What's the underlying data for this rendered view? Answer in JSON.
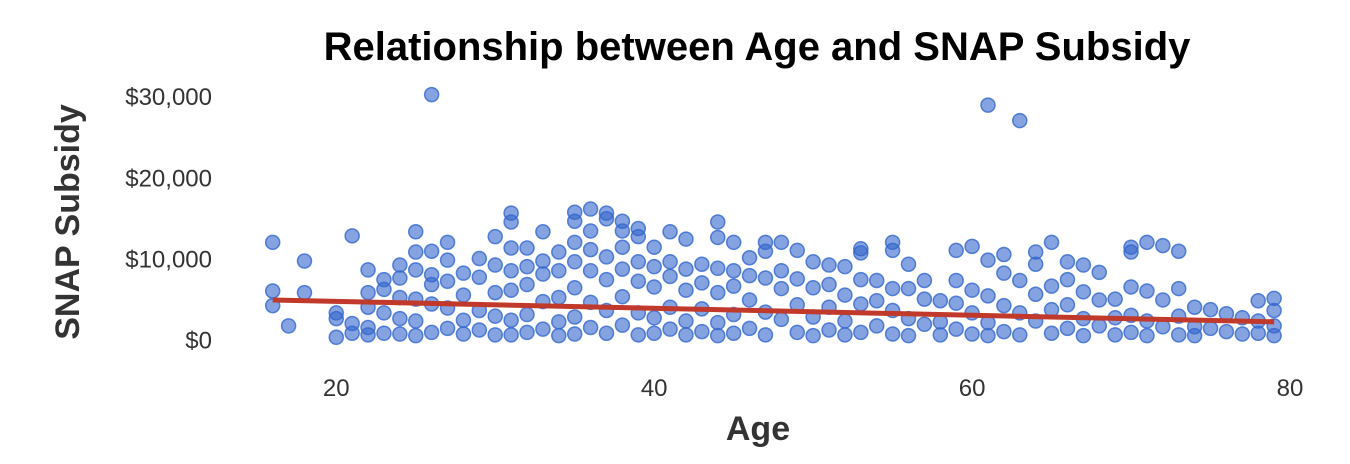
{
  "chart_data": {
    "type": "scatter",
    "title": "Relationship between Age and SNAP Subsidy",
    "xlabel": "Age",
    "ylabel": "SNAP Subsidy",
    "xlim": [
      13,
      80
    ],
    "ylim": [
      -2500,
      32000
    ],
    "x_ticks": [
      {
        "value": 20,
        "label": "20"
      },
      {
        "value": 40,
        "label": "40"
      },
      {
        "value": 60,
        "label": "60"
      },
      {
        "value": 80,
        "label": "80"
      }
    ],
    "y_ticks": [
      {
        "value": 0,
        "label": "$0"
      },
      {
        "value": 10000,
        "label": "$10,000"
      },
      {
        "value": 20000,
        "label": "$20,000"
      },
      {
        "value": 30000,
        "label": "$30,000"
      }
    ],
    "grid": false,
    "point_color": "#3366cc",
    "trend_color": "#c0392b",
    "series": [
      {
        "values": [
          [
            16,
            12000
          ],
          [
            16,
            6000
          ],
          [
            16,
            4200
          ],
          [
            17,
            1700
          ],
          [
            18,
            5800
          ],
          [
            18,
            9700
          ],
          [
            20,
            2600
          ],
          [
            20,
            3300
          ],
          [
            20,
            300
          ],
          [
            21,
            12800
          ],
          [
            21,
            2000
          ],
          [
            21,
            800
          ],
          [
            22,
            8600
          ],
          [
            22,
            5800
          ],
          [
            22,
            4000
          ],
          [
            22,
            1500
          ],
          [
            22,
            600
          ],
          [
            23,
            7400
          ],
          [
            23,
            6200
          ],
          [
            23,
            3300
          ],
          [
            23,
            800
          ],
          [
            24,
            9200
          ],
          [
            24,
            7600
          ],
          [
            24,
            5200
          ],
          [
            24,
            2600
          ],
          [
            24,
            700
          ],
          [
            25,
            13300
          ],
          [
            25,
            10800
          ],
          [
            25,
            8600
          ],
          [
            25,
            5000
          ],
          [
            25,
            2300
          ],
          [
            25,
            500
          ],
          [
            26,
            30200
          ],
          [
            26,
            10900
          ],
          [
            26,
            8000
          ],
          [
            26,
            6800
          ],
          [
            26,
            4400
          ],
          [
            26,
            900
          ],
          [
            27,
            12000
          ],
          [
            27,
            9800
          ],
          [
            27,
            7200
          ],
          [
            27,
            3900
          ],
          [
            27,
            1400
          ],
          [
            28,
            8200
          ],
          [
            28,
            5500
          ],
          [
            28,
            2400
          ],
          [
            28,
            700
          ],
          [
            29,
            10000
          ],
          [
            29,
            7700
          ],
          [
            29,
            3600
          ],
          [
            29,
            1200
          ],
          [
            30,
            12700
          ],
          [
            30,
            9200
          ],
          [
            30,
            5800
          ],
          [
            30,
            2900
          ],
          [
            30,
            600
          ],
          [
            31,
            15600
          ],
          [
            31,
            14500
          ],
          [
            31,
            11300
          ],
          [
            31,
            8500
          ],
          [
            31,
            6100
          ],
          [
            31,
            2400
          ],
          [
            31,
            600
          ],
          [
            32,
            11300
          ],
          [
            32,
            9000
          ],
          [
            32,
            6800
          ],
          [
            32,
            3100
          ],
          [
            32,
            900
          ],
          [
            33,
            13300
          ],
          [
            33,
            9700
          ],
          [
            33,
            8100
          ],
          [
            33,
            4700
          ],
          [
            33,
            1300
          ],
          [
            34,
            10800
          ],
          [
            34,
            8500
          ],
          [
            34,
            5200
          ],
          [
            34,
            2200
          ],
          [
            34,
            500
          ],
          [
            35,
            15700
          ],
          [
            35,
            14600
          ],
          [
            35,
            12000
          ],
          [
            35,
            9600
          ],
          [
            35,
            6400
          ],
          [
            35,
            2800
          ],
          [
            35,
            700
          ],
          [
            36,
            16100
          ],
          [
            36,
            13400
          ],
          [
            36,
            11100
          ],
          [
            36,
            8500
          ],
          [
            36,
            4600
          ],
          [
            36,
            1500
          ],
          [
            37,
            15600
          ],
          [
            37,
            14900
          ],
          [
            37,
            10200
          ],
          [
            37,
            7400
          ],
          [
            37,
            3600
          ],
          [
            37,
            800
          ],
          [
            38,
            14600
          ],
          [
            38,
            13400
          ],
          [
            38,
            11400
          ],
          [
            38,
            8700
          ],
          [
            38,
            5300
          ],
          [
            38,
            1800
          ],
          [
            39,
            13700
          ],
          [
            39,
            12700
          ],
          [
            39,
            9600
          ],
          [
            39,
            7200
          ],
          [
            39,
            3300
          ],
          [
            39,
            600
          ],
          [
            40,
            11400
          ],
          [
            40,
            9000
          ],
          [
            40,
            6500
          ],
          [
            40,
            2700
          ],
          [
            40,
            800
          ],
          [
            41,
            13300
          ],
          [
            41,
            9600
          ],
          [
            41,
            7800
          ],
          [
            41,
            4000
          ],
          [
            41,
            1300
          ],
          [
            42,
            12400
          ],
          [
            42,
            8700
          ],
          [
            42,
            6100
          ],
          [
            42,
            2300
          ],
          [
            42,
            600
          ],
          [
            43,
            9300
          ],
          [
            43,
            7000
          ],
          [
            43,
            3800
          ],
          [
            43,
            1000
          ],
          [
            44,
            14500
          ],
          [
            44,
            12600
          ],
          [
            44,
            8800
          ],
          [
            44,
            5800
          ],
          [
            44,
            2100
          ],
          [
            44,
            500
          ],
          [
            45,
            12000
          ],
          [
            45,
            8500
          ],
          [
            45,
            6600
          ],
          [
            45,
            3100
          ],
          [
            45,
            800
          ],
          [
            46,
            10100
          ],
          [
            46,
            7900
          ],
          [
            46,
            4900
          ],
          [
            46,
            1400
          ],
          [
            47,
            12000
          ],
          [
            47,
            10900
          ],
          [
            47,
            7600
          ],
          [
            47,
            3400
          ],
          [
            47,
            600
          ],
          [
            48,
            12000
          ],
          [
            48,
            8500
          ],
          [
            48,
            6300
          ],
          [
            48,
            2500
          ],
          [
            49,
            11000
          ],
          [
            49,
            7500
          ],
          [
            49,
            4300
          ],
          [
            49,
            900
          ],
          [
            50,
            9600
          ],
          [
            50,
            6400
          ],
          [
            50,
            2800
          ],
          [
            50,
            500
          ],
          [
            51,
            9200
          ],
          [
            51,
            6800
          ],
          [
            51,
            4000
          ],
          [
            51,
            1200
          ],
          [
            52,
            9000
          ],
          [
            52,
            5500
          ],
          [
            52,
            2300
          ],
          [
            52,
            600
          ],
          [
            53,
            11200
          ],
          [
            53,
            10700
          ],
          [
            53,
            7400
          ],
          [
            53,
            4400
          ],
          [
            53,
            900
          ],
          [
            54,
            7300
          ],
          [
            54,
            4800
          ],
          [
            54,
            1700
          ],
          [
            55,
            12000
          ],
          [
            55,
            11000
          ],
          [
            55,
            6300
          ],
          [
            55,
            3600
          ],
          [
            55,
            700
          ],
          [
            56,
            9300
          ],
          [
            56,
            6300
          ],
          [
            56,
            2600
          ],
          [
            56,
            500
          ],
          [
            57,
            7300
          ],
          [
            57,
            5000
          ],
          [
            57,
            1900
          ],
          [
            58,
            4800
          ],
          [
            58,
            2200
          ],
          [
            58,
            600
          ],
          [
            59,
            11000
          ],
          [
            59,
            7300
          ],
          [
            59,
            4500
          ],
          [
            59,
            1300
          ],
          [
            60,
            11500
          ],
          [
            60,
            6100
          ],
          [
            60,
            3300
          ],
          [
            60,
            700
          ],
          [
            61,
            28900
          ],
          [
            61,
            9800
          ],
          [
            61,
            5400
          ],
          [
            61,
            2100
          ],
          [
            61,
            500
          ],
          [
            62,
            10500
          ],
          [
            62,
            8200
          ],
          [
            62,
            4200
          ],
          [
            62,
            1000
          ],
          [
            63,
            27000
          ],
          [
            63,
            7300
          ],
          [
            63,
            3300
          ],
          [
            63,
            600
          ],
          [
            64,
            10800
          ],
          [
            64,
            9300
          ],
          [
            64,
            5600
          ],
          [
            64,
            2300
          ],
          [
            65,
            12000
          ],
          [
            65,
            6600
          ],
          [
            65,
            3700
          ],
          [
            65,
            800
          ],
          [
            66,
            9600
          ],
          [
            66,
            7400
          ],
          [
            66,
            4300
          ],
          [
            66,
            1400
          ],
          [
            67,
            9200
          ],
          [
            67,
            5900
          ],
          [
            67,
            2600
          ],
          [
            67,
            500
          ],
          [
            68,
            8300
          ],
          [
            68,
            4900
          ],
          [
            68,
            1700
          ],
          [
            69,
            5000
          ],
          [
            69,
            2700
          ],
          [
            69,
            600
          ],
          [
            70,
            11400
          ],
          [
            70,
            10800
          ],
          [
            70,
            6500
          ],
          [
            70,
            3000
          ],
          [
            70,
            900
          ],
          [
            71,
            12000
          ],
          [
            71,
            6000
          ],
          [
            71,
            2300
          ],
          [
            71,
            500
          ],
          [
            72,
            11600
          ],
          [
            72,
            4900
          ],
          [
            72,
            1600
          ],
          [
            73,
            10900
          ],
          [
            73,
            6300
          ],
          [
            73,
            2900
          ],
          [
            73,
            600
          ],
          [
            74,
            4000
          ],
          [
            74,
            1600
          ],
          [
            74,
            500
          ],
          [
            75,
            3700
          ],
          [
            75,
            1400
          ],
          [
            76,
            3200
          ],
          [
            76,
            1000
          ],
          [
            77,
            2700
          ],
          [
            77,
            700
          ],
          [
            78,
            4800
          ],
          [
            78,
            2300
          ],
          [
            78,
            800
          ],
          [
            79,
            5100
          ],
          [
            79,
            3600
          ],
          [
            79,
            1700
          ],
          [
            79,
            500
          ]
        ]
      }
    ],
    "trend_line": [
      [
        16,
        4900
      ],
      [
        79,
        2200
      ]
    ]
  }
}
